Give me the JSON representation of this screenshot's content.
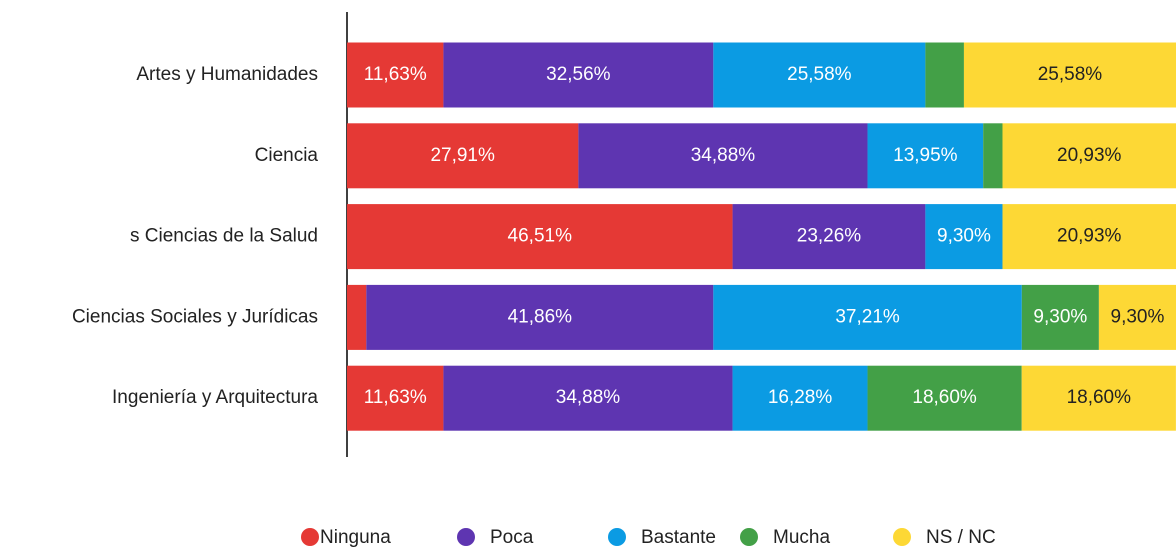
{
  "chart_data": {
    "type": "stacked-bar-horizontal",
    "categories": [
      "Artes y Humanidades",
      "Ciencia",
      "s Ciencias de la Salud",
      "Ciencias Sociales y Jurídicas",
      "Ingeniería y Arquitectura"
    ],
    "xlim": [
      0,
      100
    ],
    "series": [
      {
        "name": "Ninguna",
        "color": "#e53935",
        "values": [
          11.63,
          27.91,
          46.51,
          2.33,
          11.63
        ],
        "value_labels": [
          "11,63%",
          "27,91%",
          "46,51%",
          null,
          "11,63%"
        ]
      },
      {
        "name": "Poca",
        "color": "#5e35b1",
        "values": [
          32.56,
          34.88,
          23.26,
          41.86,
          34.88
        ],
        "value_labels": [
          "32,56%",
          "34,88%",
          "23,26%",
          "41,86%",
          "34,88%"
        ]
      },
      {
        "name": "Bastante",
        "color": "#0b9be3",
        "values": [
          25.58,
          13.95,
          9.3,
          37.21,
          16.28
        ],
        "value_labels": [
          "25,58%",
          "13,95%",
          "9,30%",
          "37,21%",
          "16,28%"
        ]
      },
      {
        "name": "Mucha",
        "color": "#43a047",
        "values": [
          4.65,
          2.33,
          0,
          9.3,
          18.6
        ],
        "value_labels": [
          null,
          null,
          null,
          "9,30%",
          "18,60%"
        ]
      },
      {
        "name": "NS / NC",
        "color": "#fdd835",
        "values": [
          25.58,
          20.93,
          20.93,
          9.3,
          18.6
        ],
        "value_labels": [
          "25,58%",
          "20,93%",
          "20,93%",
          "9,30%",
          "18,60%"
        ]
      }
    ],
    "legend": "bottom"
  }
}
